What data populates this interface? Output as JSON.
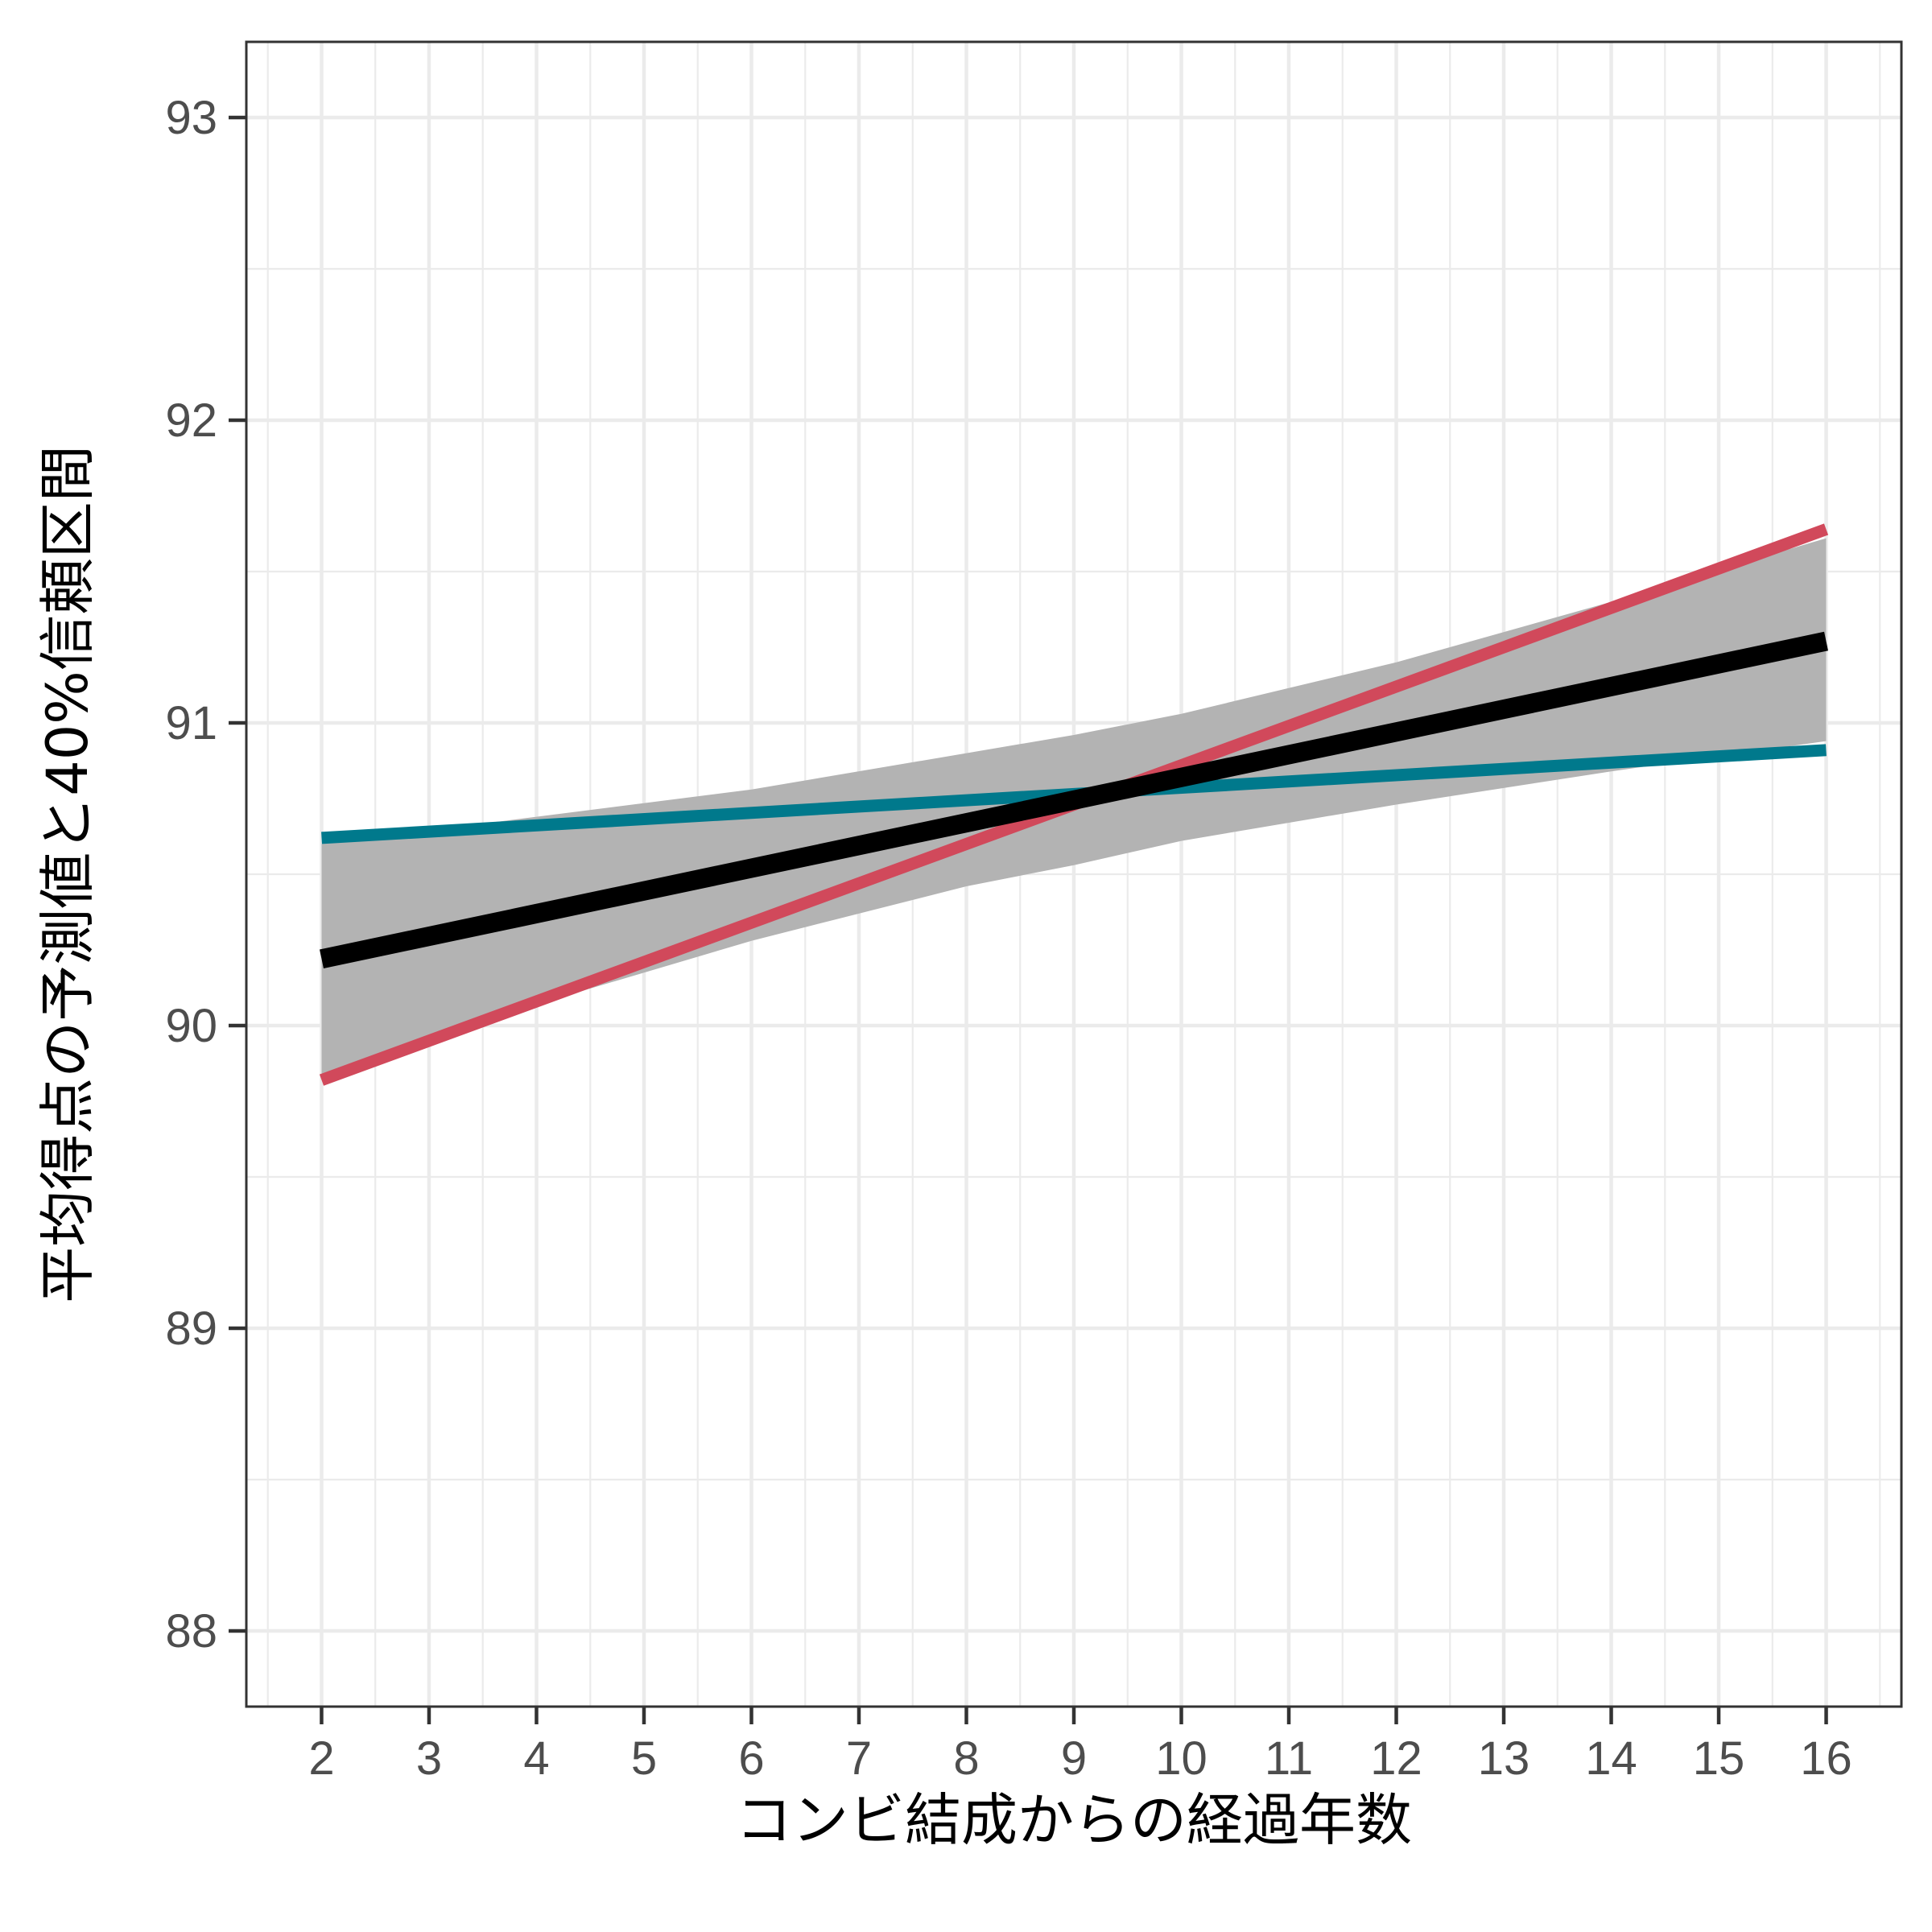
{
  "chart_data": {
    "type": "line",
    "title": "",
    "xlabel": "コンビ結成からの経過年数",
    "ylabel": "平均得点の予測値と40%信頼区間",
    "xlim": [
      1.3,
      16.7
    ],
    "ylim": [
      87.75,
      93.25
    ],
    "x_ticks": [
      2,
      3,
      4,
      5,
      6,
      7,
      8,
      9,
      10,
      11,
      12,
      13,
      14,
      15,
      16
    ],
    "y_ticks": [
      88,
      89,
      90,
      91,
      92,
      93
    ],
    "grid": true,
    "band": {
      "color": "#b3b3b3",
      "x": [
        2,
        4,
        6,
        8,
        9,
        10,
        12,
        14,
        16
      ],
      "lower": [
        89.84,
        90.07,
        90.28,
        90.46,
        90.53,
        90.61,
        90.73,
        90.84,
        90.94
      ],
      "upper": [
        90.6,
        90.69,
        90.78,
        90.9,
        90.96,
        91.03,
        91.2,
        91.4,
        91.61
      ]
    },
    "series": [
      {
        "color": "#00798c",
        "x": [
          2,
          16
        ],
        "y": [
          90.62,
          90.91
        ]
      },
      {
        "color": "#d1495b",
        "x": [
          2,
          16
        ],
        "y": [
          89.82,
          91.64
        ]
      },
      {
        "color": "#000000",
        "x": [
          2,
          16
        ],
        "y": [
          90.22,
          91.27
        ]
      }
    ]
  }
}
